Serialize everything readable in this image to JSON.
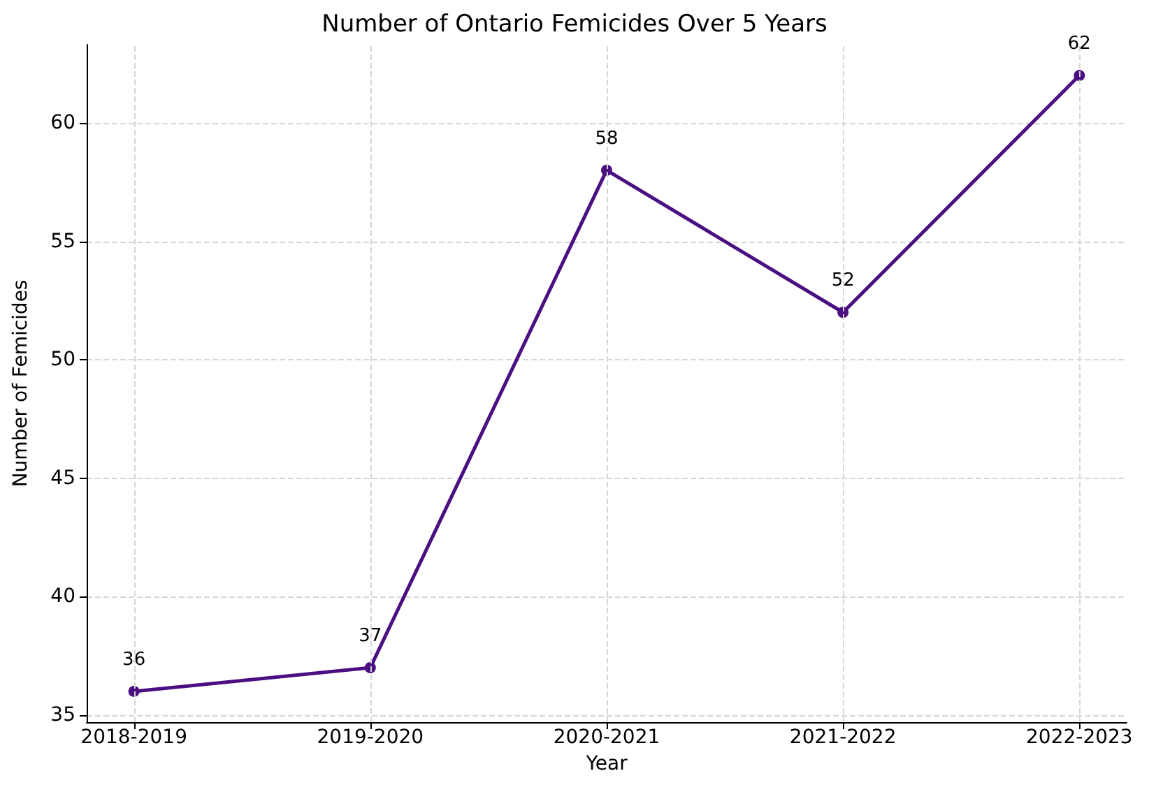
{
  "chart_data": {
    "type": "line",
    "title": "Number of Ontario Femicides Over 5 Years",
    "xlabel": "Year",
    "ylabel": "Number of Femicides",
    "categories": [
      "2018-2019",
      "2019-2020",
      "2020-2021",
      "2021-2022",
      "2022-2023"
    ],
    "series": [
      {
        "color": "#4b0f82",
        "values": [
          36,
          37,
          58,
          52,
          62
        ]
      }
    ],
    "ylim": [
      34.7,
      63.3
    ],
    "yticks": [
      35,
      40,
      45,
      50,
      55,
      60
    ],
    "grid": true,
    "data_labels": true,
    "marker": "circle",
    "line_style": "solid"
  }
}
